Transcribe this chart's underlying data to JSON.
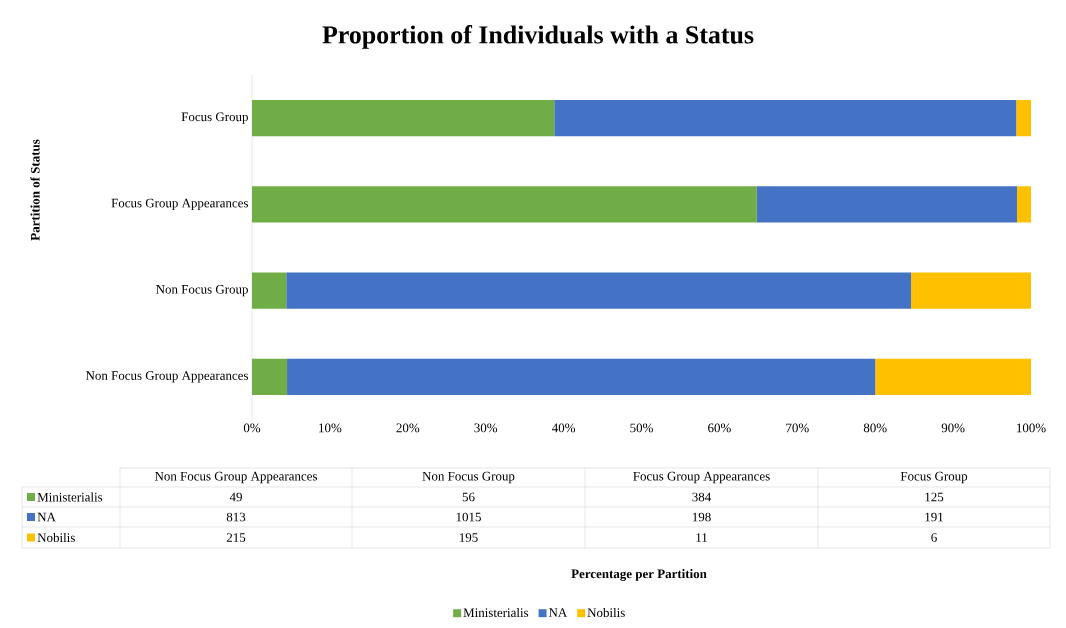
{
  "chart_data": [
    {
      "type": "bar",
      "orientation": "horizontal",
      "stacked": true,
      "title": "Proportion of Individuals with a Status",
      "xlabel": "Percentage per Partition",
      "ylabel": "Partition of Status",
      "categories": [
        "Focus Group",
        "Focus Group Appearances",
        "Non Focus Group",
        "Non Focus Group Appearances"
      ],
      "series": [
        {
          "name": "Ministerialis",
          "color": "#70ad47",
          "values": [
            38.8,
            64.8,
            4.4,
            4.5
          ]
        },
        {
          "name": "NA",
          "color": "#4472c4",
          "values": [
            59.3,
            33.4,
            80.2,
            75.5
          ]
        },
        {
          "name": "Nobilis",
          "color": "#ffc000",
          "values": [
            1.9,
            1.8,
            15.4,
            20.0
          ]
        }
      ],
      "xlim": [
        0,
        100
      ],
      "xticks": [
        {
          "value": 0,
          "label": "0%"
        },
        {
          "value": 10,
          "label": "10%"
        },
        {
          "value": 20,
          "label": "20%"
        },
        {
          "value": 30,
          "label": "30%"
        },
        {
          "value": 40,
          "label": "40%"
        },
        {
          "value": 50,
          "label": "50%"
        },
        {
          "value": 60,
          "label": "60%"
        },
        {
          "value": 70,
          "label": "70%"
        },
        {
          "value": 80,
          "label": "80%"
        },
        {
          "value": 90,
          "label": "90%"
        },
        {
          "value": 100,
          "label": "100%"
        }
      ],
      "legend": "bottom"
    },
    {
      "type": "other",
      "categories": [
        "Non Focus Group Appearances",
        "Non Focus Group",
        "Focus Group Appearances",
        "Focus Group"
      ],
      "series": [
        {
          "name": "Ministerialis",
          "color": "#70ad47",
          "values": [
            49,
            56,
            384,
            125
          ]
        },
        {
          "name": "NA",
          "color": "#4472c4",
          "values": [
            813,
            1015,
            198,
            191
          ]
        },
        {
          "name": "Nobilis",
          "color": "#ffc000",
          "values": [
            215,
            195,
            11,
            6
          ]
        }
      ],
      "data_labels": true
    }
  ]
}
